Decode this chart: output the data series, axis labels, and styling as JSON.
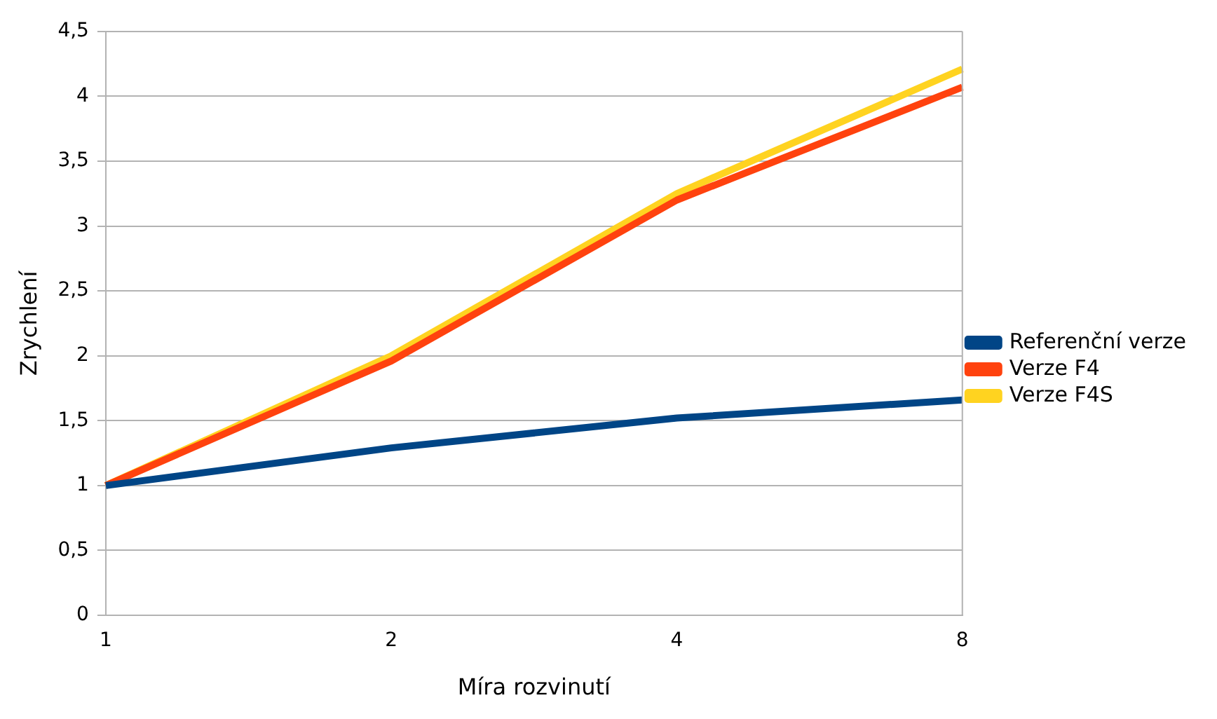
{
  "chart_data": {
    "type": "line",
    "xlabel": "Míra rozvinutí",
    "ylabel": "Zrychlení",
    "categories": [
      "1",
      "2",
      "4",
      "8"
    ],
    "series": [
      {
        "name": "Referenční verze",
        "color": "#004586",
        "values": [
          1,
          1.29,
          1.52,
          1.66
        ]
      },
      {
        "name": "Verze F4",
        "color": "#ff420e",
        "values": [
          1,
          1.96,
          3.2,
          4.07
        ]
      },
      {
        "name": "Verze F4S",
        "color": "#ffd320",
        "values": [
          1,
          2,
          3.25,
          4.21
        ]
      }
    ],
    "ylim": [
      0,
      4.5
    ],
    "yticks": [
      0,
      {
        "value": 0.5,
        "label": "0,5"
      },
      1,
      {
        "value": 1.5,
        "label": "1,5"
      },
      2,
      {
        "value": 2.5,
        "label": "2,5"
      },
      3,
      {
        "value": 3.5,
        "label": "3,5"
      },
      4,
      {
        "value": 4.5,
        "label": "4,5"
      }
    ],
    "grid": "y",
    "legend": "right",
    "marker": "none",
    "line_style": "solid"
  }
}
